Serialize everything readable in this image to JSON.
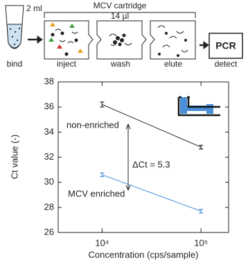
{
  "diagram": {
    "volume_in": "2 ml",
    "cartridge": "MCV cartridge",
    "volume_out": "14 µl",
    "pcr": "PCR",
    "steps": [
      "bind",
      "inject",
      "wash",
      "elute",
      "detect"
    ]
  },
  "chart_data": {
    "type": "line",
    "x_label": "Concentration (cps/sample)",
    "y_label": "Ct value (-)",
    "x": [
      10000,
      100000
    ],
    "log_x": true,
    "xlim": [
      3600,
      190000
    ],
    "xticks": [
      {
        "value": 10000,
        "label": "10⁴"
      },
      {
        "value": 100000,
        "label": "10⁵"
      }
    ],
    "ylim": [
      26,
      38
    ],
    "yticks": [
      26,
      28,
      30,
      32,
      34,
      36,
      38
    ],
    "series": [
      {
        "name": "non-enriched",
        "color": "#222222",
        "values": [
          36.2,
          32.8
        ],
        "errors": [
          0.2,
          0.15
        ]
      },
      {
        "name": "MCV enriched",
        "color": "#4a90d9",
        "values": [
          30.6,
          27.7
        ],
        "errors": [
          0.15,
          0.15
        ]
      }
    ],
    "annotation": "ΔCt = 5.3"
  }
}
